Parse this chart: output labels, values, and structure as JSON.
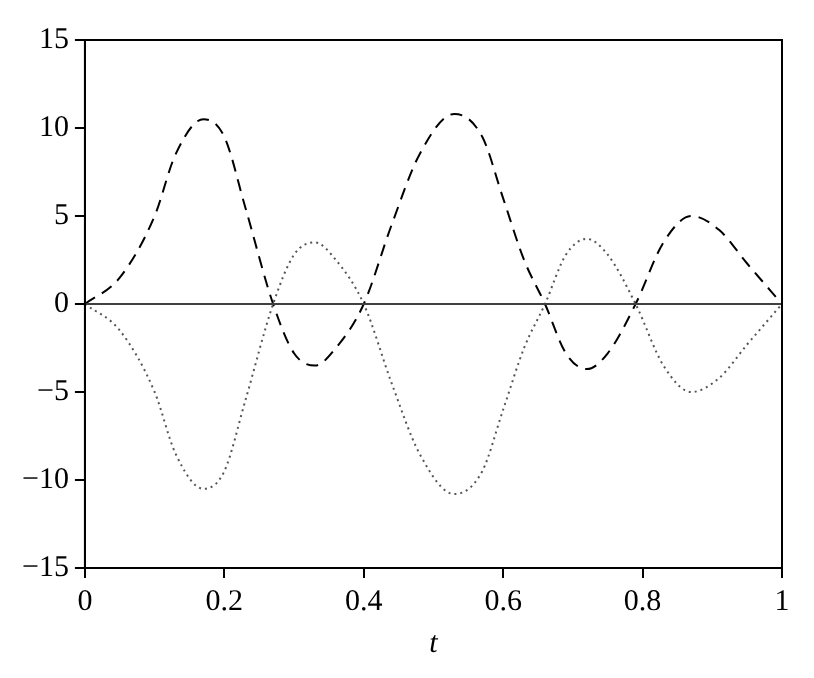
{
  "chart_data": {
    "type": "line",
    "xlabel": "t",
    "xlim": [
      0,
      1
    ],
    "xticks": [
      0,
      0.2,
      0.4,
      0.6,
      0.8,
      1
    ],
    "ylim": [
      -15,
      15
    ],
    "yticks": [
      -15,
      -10,
      -5,
      0,
      5,
      10,
      15
    ],
    "grid": false,
    "legend": false,
    "marker": "none",
    "series": [
      {
        "color": "#404040",
        "line_style": "solid",
        "x": [
          0,
          1
        ],
        "values": [
          0,
          0
        ]
      },
      {
        "color": "#000000",
        "line_style": "dashed",
        "x": [
          0,
          0.05,
          0.1,
          0.13,
          0.17,
          0.2,
          0.23,
          0.27,
          0.3,
          0.33,
          0.36,
          0.4,
          0.44,
          0.48,
          0.53,
          0.57,
          0.6,
          0.63,
          0.66,
          0.69,
          0.72,
          0.75,
          0.79,
          0.83,
          0.87,
          0.91,
          0.95,
          1
        ],
        "values": [
          0,
          1.5,
          5,
          8.5,
          10.5,
          9.5,
          5.5,
          0,
          -2.8,
          -3.5,
          -2.5,
          0,
          4.5,
          8.5,
          10.8,
          9.5,
          6,
          2.5,
          0,
          -2.8,
          -3.7,
          -2.8,
          0,
          3.5,
          5,
          4.2,
          2.3,
          0
        ]
      },
      {
        "color": "#555555",
        "line_style": "dotted",
        "x": [
          0,
          0.05,
          0.1,
          0.13,
          0.17,
          0.2,
          0.23,
          0.27,
          0.3,
          0.33,
          0.36,
          0.4,
          0.44,
          0.48,
          0.53,
          0.57,
          0.6,
          0.63,
          0.66,
          0.69,
          0.72,
          0.75,
          0.79,
          0.83,
          0.87,
          0.91,
          0.95,
          1
        ],
        "values": [
          0,
          -1.5,
          -5,
          -8.5,
          -10.5,
          -9.5,
          -5.5,
          0,
          2.8,
          3.5,
          2.5,
          0,
          -4.5,
          -8.5,
          -10.8,
          -9.5,
          -6,
          -2.5,
          0,
          2.8,
          3.7,
          2.8,
          0,
          -3.5,
          -5,
          -4.2,
          -2.3,
          0
        ]
      }
    ]
  }
}
